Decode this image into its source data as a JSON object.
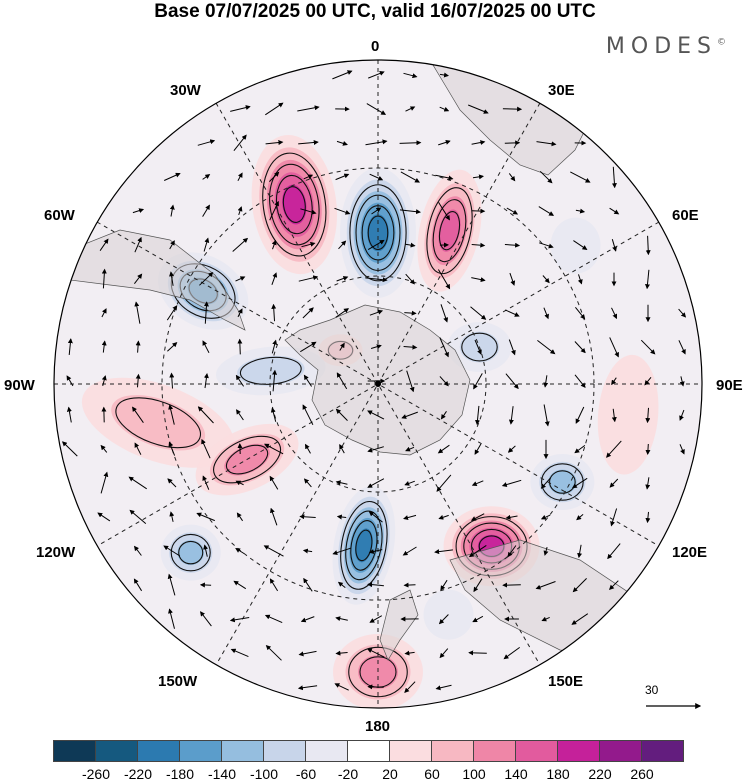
{
  "title": "Base 07/07/2025 00 UTC, valid 16/07/2025 00 UTC",
  "brand": "MODES",
  "brand_mark": "©",
  "longitude_labels": {
    "lon_0": "0",
    "lon_30e": "30E",
    "lon_60e": "60E",
    "lon_90e": "90E",
    "lon_120e": "120E",
    "lon_150e": "150E",
    "lon_180": "180",
    "lon_150w": "150W",
    "lon_120w": "120W",
    "lon_90w": "90W",
    "lon_60w": "60W",
    "lon_30w": "30W"
  },
  "reference_vector": "30",
  "colorbar": {
    "colors": [
      "#0e3956",
      "#15597f",
      "#2c7ab0",
      "#5b9dcb",
      "#95bedf",
      "#c8d5ea",
      "#e8e8f2",
      "#ffffff",
      "#fbdde0",
      "#f7b8c2",
      "#ef86a7",
      "#e25b9e",
      "#c5219a",
      "#931a8c",
      "#631d7e"
    ],
    "ticks": [
      "-260",
      "-220",
      "-180",
      "-140",
      "-100",
      "-60",
      "-20",
      "20",
      "60",
      "100",
      "140",
      "180",
      "220",
      "260"
    ]
  },
  "anomalies": [
    {
      "name": "atlantic-high",
      "lon": -25,
      "colat": 55,
      "rx": 42,
      "ry": 70,
      "rot": -8,
      "level": 5
    },
    {
      "name": "south-atlantic-low",
      "lon": 0,
      "colat": 42,
      "rx": 38,
      "ry": 65,
      "rot": 0,
      "level": -5
    },
    {
      "name": "africa-high",
      "lon": 25,
      "colat": 47,
      "rx": 30,
      "ry": 62,
      "rot": 12,
      "level": 4
    },
    {
      "name": "indian-low-1",
      "lon": 70,
      "colat": 30,
      "rx": 32,
      "ry": 25,
      "rot": 0,
      "level": -2
    },
    {
      "name": "indian-low-2",
      "lon": 55,
      "colat": 67,
      "rx": 25,
      "ry": 28,
      "rot": 0,
      "level": -1
    },
    {
      "name": "pacific-west-low",
      "lon": -62,
      "colat": 55,
      "rx": 48,
      "ry": 35,
      "rot": 30,
      "level": -4
    },
    {
      "name": "drake-low",
      "lon": -83,
      "colat": 30,
      "rx": 55,
      "ry": 24,
      "rot": -5,
      "level": -2
    },
    {
      "name": "east-pacific-high",
      "lon": -100,
      "colat": 62,
      "rx": 80,
      "ry": 38,
      "rot": 20,
      "level": 2
    },
    {
      "name": "south-pacific-high",
      "lon": -120,
      "colat": 42,
      "rx": 55,
      "ry": 30,
      "rot": -25,
      "level": 3
    },
    {
      "name": "far-pacific-low",
      "lon": -132,
      "colat": 70,
      "rx": 30,
      "ry": 28,
      "rot": 0,
      "level": -3
    },
    {
      "name": "ross-low",
      "lon": -175,
      "colat": 45,
      "rx": 30,
      "ry": 60,
      "rot": 10,
      "level": -5
    },
    {
      "name": "tasman-high",
      "lon": 145,
      "colat": 55,
      "rx": 48,
      "ry": 40,
      "rot": 0,
      "level": 5
    },
    {
      "name": "south-indian-low",
      "lon": 118,
      "colat": 58,
      "rx": 32,
      "ry": 28,
      "rot": 0,
      "level": -3
    },
    {
      "name": "new-zealand-high",
      "lon": 180,
      "colat": 80,
      "rx": 45,
      "ry": 38,
      "rot": 0,
      "level": 3
    },
    {
      "name": "east-of-nz-low",
      "lon": 163,
      "colat": 67,
      "rx": 25,
      "ry": 25,
      "rot": 0,
      "level": -1
    },
    {
      "name": "indian-east-high",
      "lon": 97,
      "colat": 70,
      "rx": 30,
      "ry": 60,
      "rot": 5,
      "level": 1
    },
    {
      "name": "weddell-high",
      "lon": -48,
      "colat": 14,
      "rx": 22,
      "ry": 16,
      "rot": 0,
      "level": 2
    }
  ]
}
